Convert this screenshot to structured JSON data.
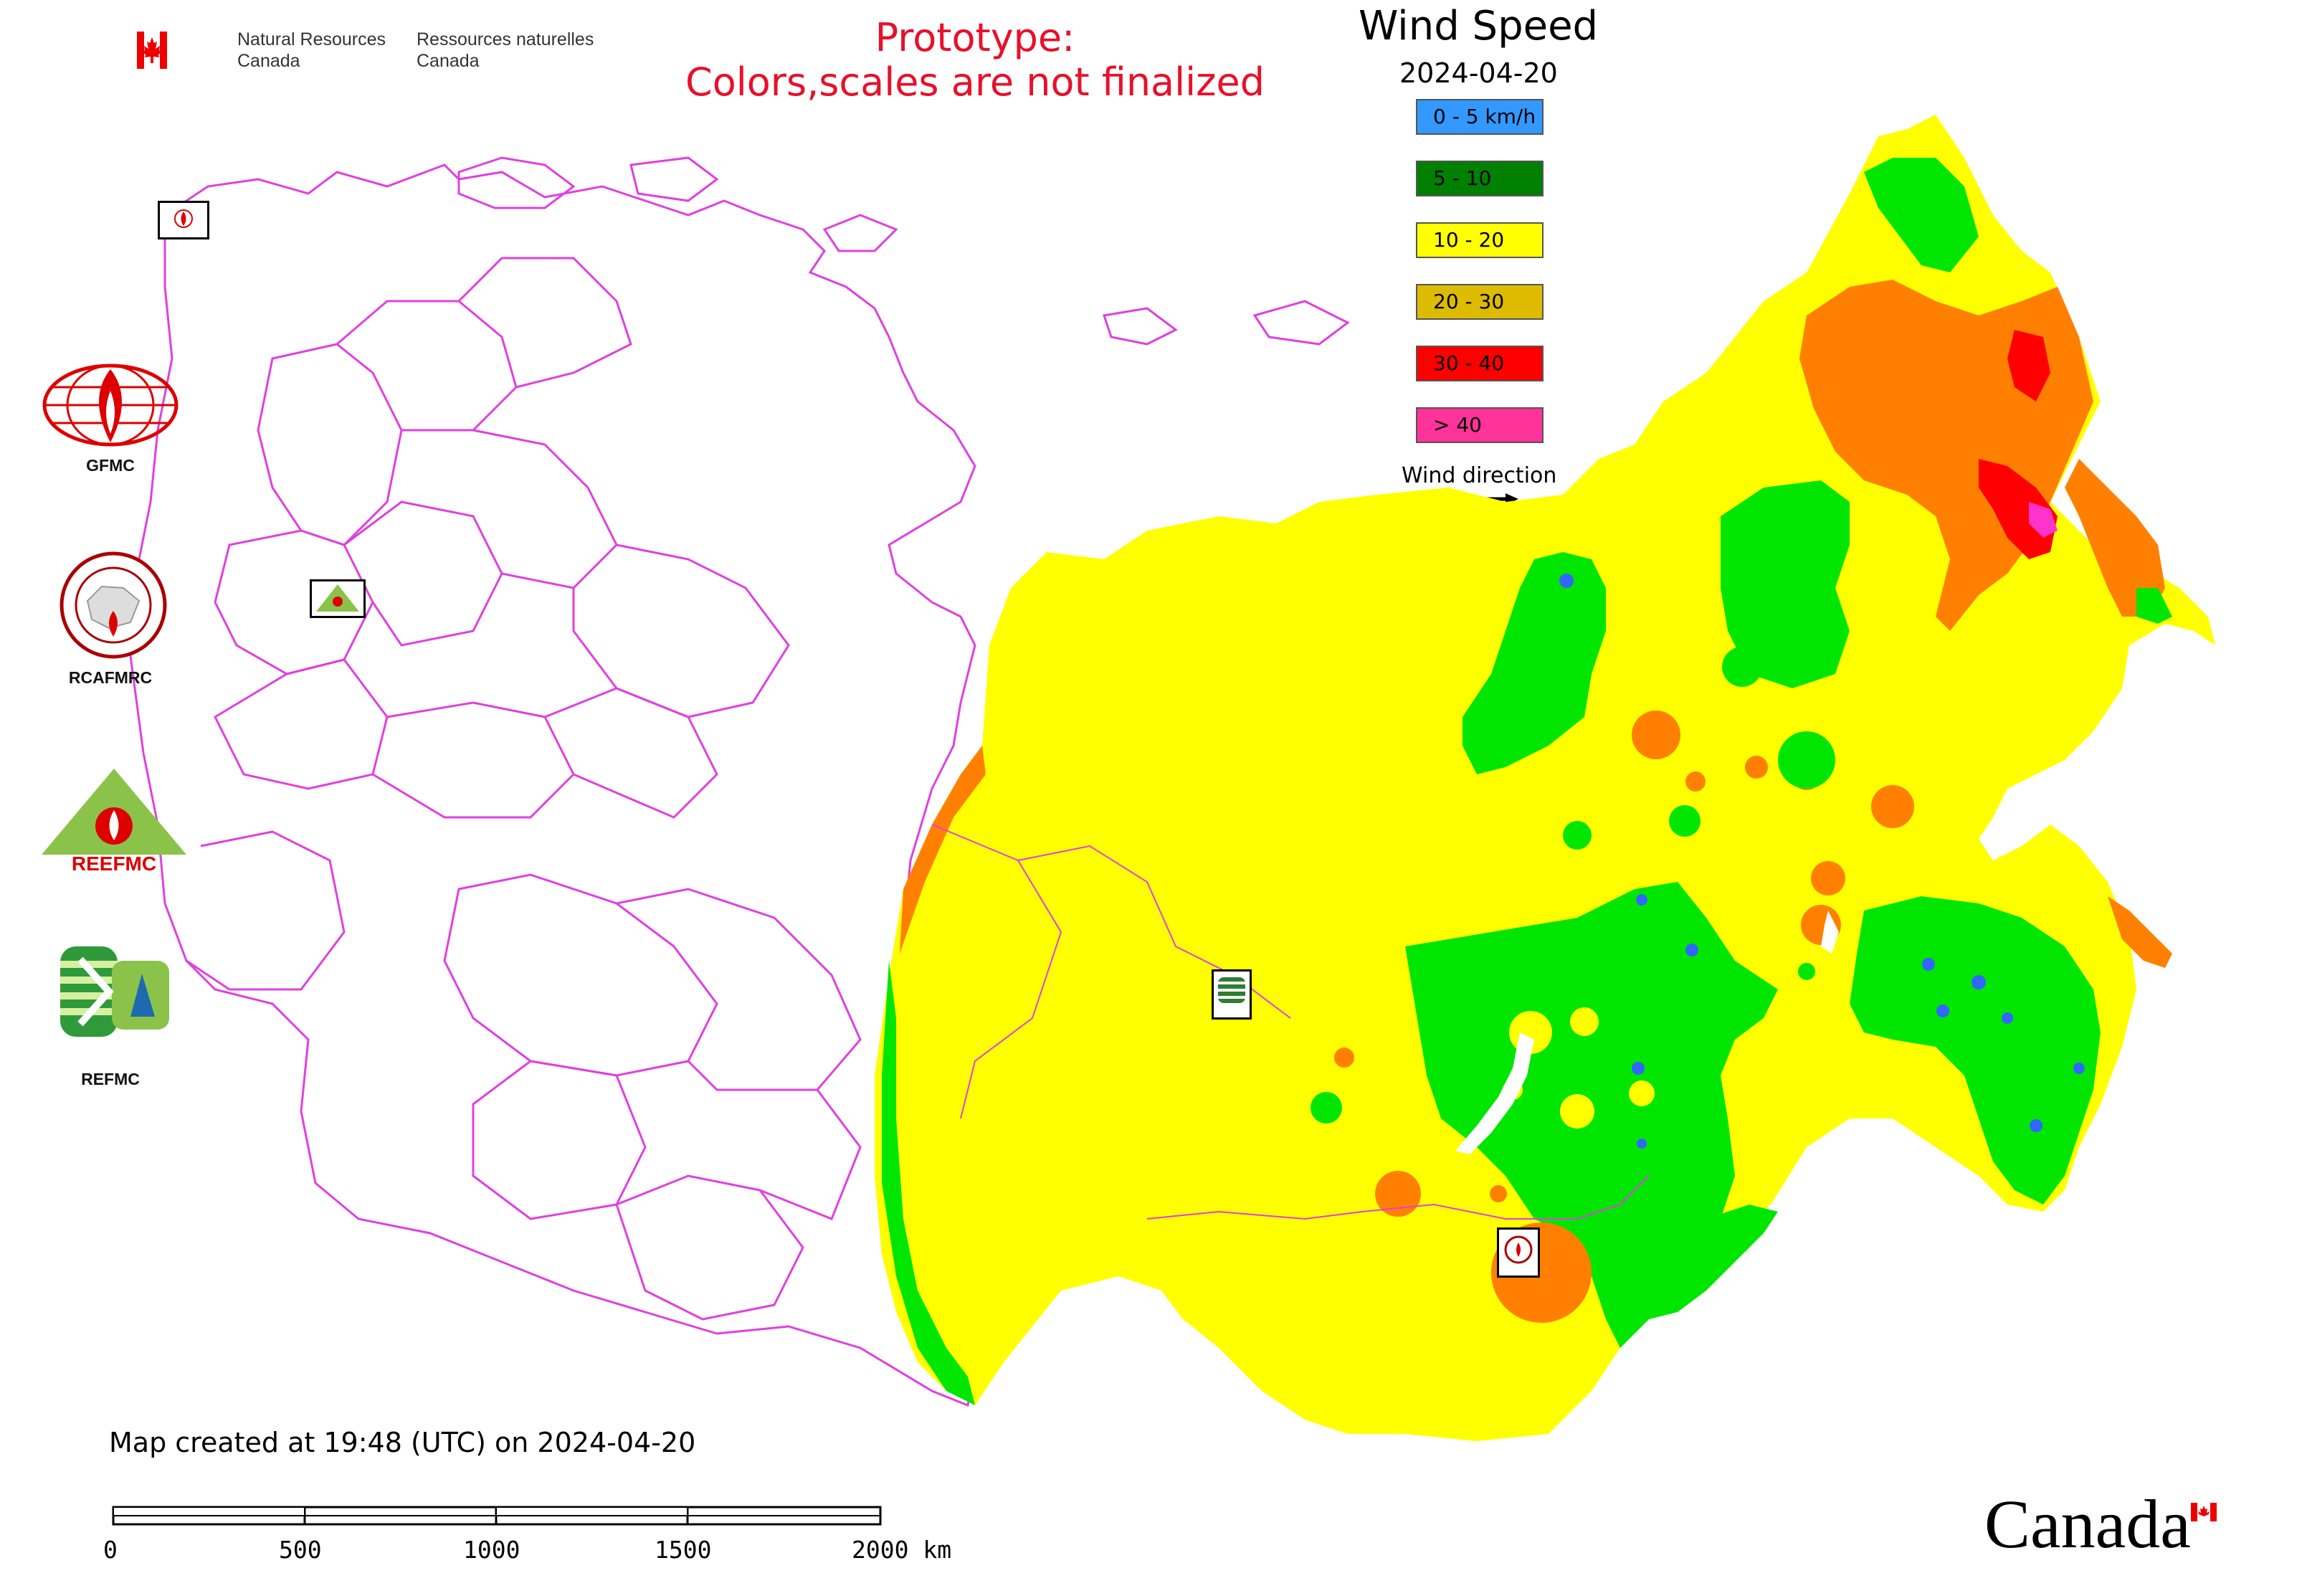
{
  "header": {
    "org_en_line1": "Natural Resources",
    "org_en_line2": "Canada",
    "org_fr_line1": "Ressources naturelles",
    "org_fr_line2": "Canada"
  },
  "notice": {
    "line1": "Prototype:",
    "line2": "Colors,scales are not finalized"
  },
  "title": "Wind Speed",
  "date": "2024-04-20",
  "legend": {
    "items": [
      {
        "label": "0 - 5 km/h",
        "color": "#3399ff"
      },
      {
        "label": "5 - 10",
        "color": "#008000"
      },
      {
        "label": "10 - 20",
        "color": "#ffff00"
      },
      {
        "label": "20 - 30",
        "color": "#ddbb00"
      },
      {
        "label": "30 - 40",
        "color": "#ff0000"
      },
      {
        "label": "> 40",
        "color": "#ff3399"
      }
    ],
    "wind_label": "Wind direction"
  },
  "logos": {
    "gfmc": "GFMC",
    "rcafmrc": "RCAFMRC",
    "reefmc_logo_text": "REEFMC",
    "refmc": "REFMC"
  },
  "footer": {
    "created": "Map created at 19:48 (UTC) on 2024-04-20",
    "scale_ticks": [
      "0",
      "500",
      "1000",
      "1500",
      "2000 km"
    ],
    "wordmark": "Canada"
  },
  "colors": {
    "border": "#e040e0",
    "yellow": "#ffff00",
    "green": "#00e600",
    "orange": "#ff8000",
    "red": "#ff0000",
    "magenta": "#ff33cc",
    "blue": "#3366ff"
  }
}
